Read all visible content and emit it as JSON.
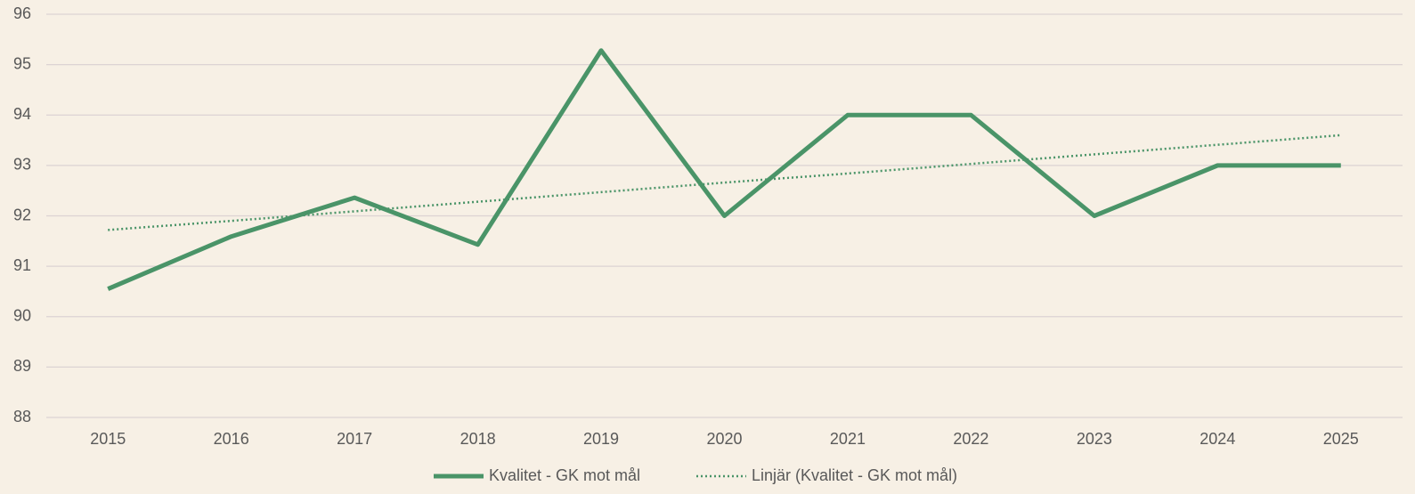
{
  "chart_data": {
    "type": "line",
    "categories": [
      "2015",
      "2016",
      "2017",
      "2018",
      "2019",
      "2020",
      "2021",
      "2022",
      "2023",
      "2024",
      "2025"
    ],
    "series": [
      {
        "name": "Kvalitet - GK mot mål",
        "color": "#4a9468",
        "style": "solid",
        "values": [
          90.55,
          91.59,
          92.36,
          91.43,
          95.28,
          92,
          94,
          94,
          92,
          93,
          93
        ]
      },
      {
        "name": "Linjär (Kvalitet - GK mot mål)",
        "color": "#4a9468",
        "style": "dotted",
        "values": [
          91.72,
          91.9,
          92.09,
          92.28,
          92.47,
          92.66,
          92.84,
          93.03,
          93.22,
          93.41,
          93.6
        ]
      }
    ],
    "ylim": [
      88,
      96
    ],
    "yticks": [
      88,
      89,
      90,
      91,
      92,
      93,
      94,
      95,
      96
    ],
    "grid": true,
    "legend": "bottom"
  }
}
